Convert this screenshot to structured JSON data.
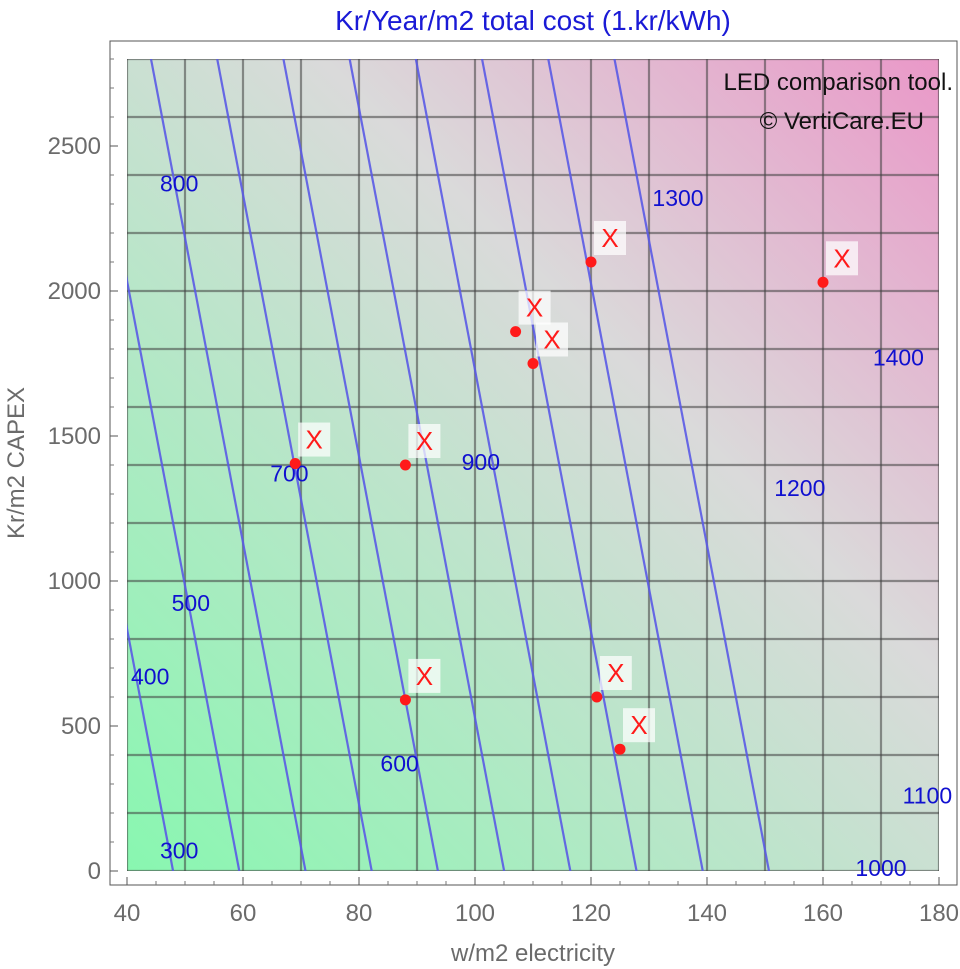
{
  "chart_data": {
    "type": "contour",
    "title": "Kr/Year/m2 total cost (1.kr/kWh)",
    "xlabel": "w/m2 electricity",
    "ylabel": "Kr/m2 CAPEX",
    "xlim": [
      40,
      180
    ],
    "ylim": [
      0,
      2800
    ],
    "x_ticks": [
      40,
      60,
      80,
      100,
      120,
      140,
      160,
      180
    ],
    "y_ticks": [
      0,
      500,
      1000,
      1500,
      2000,
      2500
    ],
    "grid": true,
    "colors": {
      "low": "#88f7b0",
      "mid": "#dadada",
      "high": "#ea98c8",
      "contour_line": "#5a5ae6",
      "contour_label": "#1010d0",
      "title": "#1a1ad6",
      "marker": "#ff1a1a",
      "grid": "#404040"
    },
    "contour_levels": [
      300,
      400,
      500,
      600,
      700,
      800,
      900,
      1000,
      1100,
      1200,
      1300,
      1400
    ],
    "contour_labels": [
      {
        "text": "300",
        "x": 49,
        "y": 70
      },
      {
        "text": "400",
        "x": 44,
        "y": 670
      },
      {
        "text": "500",
        "x": 51,
        "y": 925
      },
      {
        "text": "600",
        "x": 87,
        "y": 370
      },
      {
        "text": "700",
        "x": 68,
        "y": 1370
      },
      {
        "text": "800",
        "x": 49,
        "y": 2370
      },
      {
        "text": "900",
        "x": 101,
        "y": 1410
      },
      {
        "text": "1000",
        "x": 170,
        "y": 10
      },
      {
        "text": "1100",
        "x": 178,
        "y": 260
      },
      {
        "text": "1200",
        "x": 156,
        "y": 1320
      },
      {
        "text": "1300",
        "x": 135,
        "y": 2320
      },
      {
        "text": "1400",
        "x": 173,
        "y": 1770
      }
    ],
    "points": [
      {
        "x": 69,
        "y": 1405,
        "label": "X"
      },
      {
        "x": 88,
        "y": 1400,
        "label": "X"
      },
      {
        "x": 88,
        "y": 590,
        "label": "X"
      },
      {
        "x": 107,
        "y": 1860,
        "label": "X"
      },
      {
        "x": 110,
        "y": 1750,
        "label": "X"
      },
      {
        "x": 120,
        "y": 2100,
        "label": "X"
      },
      {
        "x": 121,
        "y": 600,
        "label": "X"
      },
      {
        "x": 125,
        "y": 420,
        "label": "X"
      },
      {
        "x": 160,
        "y": 2030,
        "label": "X"
      }
    ],
    "annotations": [
      "LED comparison tool.",
      "© VertiCare.EU"
    ]
  }
}
